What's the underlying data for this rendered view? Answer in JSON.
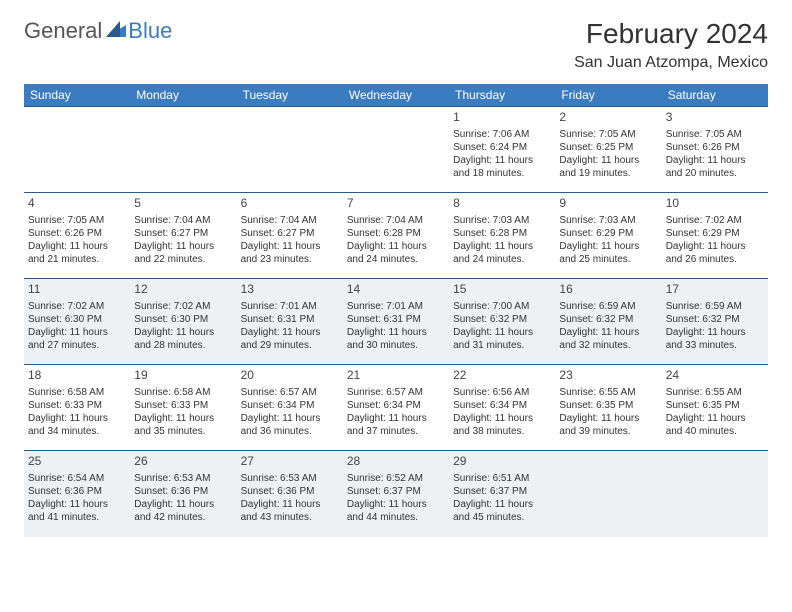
{
  "logo": {
    "general": "General",
    "blue": "Blue"
  },
  "title": "February 2024",
  "location": "San Juan Atzompa, Mexico",
  "colors": {
    "header_bg": "#3b7bbf",
    "header_border": "#2a5a8a",
    "shaded_row_bg": "#eef1f3",
    "text": "#333333",
    "logo_gray": "#555555",
    "logo_blue": "#3b7bbf"
  },
  "typography": {
    "title_fontsize": 28,
    "location_fontsize": 16,
    "dayheader_fontsize": 12,
    "cell_fontsize": 10,
    "daynum_fontsize": 12
  },
  "day_headers": [
    "Sunday",
    "Monday",
    "Tuesday",
    "Wednesday",
    "Thursday",
    "Friday",
    "Saturday"
  ],
  "weeks": [
    {
      "shaded": false,
      "days": [
        null,
        null,
        null,
        null,
        {
          "n": "1",
          "sunrise": "7:06 AM",
          "sunset": "6:24 PM",
          "daylight": "11 hours and 18 minutes."
        },
        {
          "n": "2",
          "sunrise": "7:05 AM",
          "sunset": "6:25 PM",
          "daylight": "11 hours and 19 minutes."
        },
        {
          "n": "3",
          "sunrise": "7:05 AM",
          "sunset": "6:26 PM",
          "daylight": "11 hours and 20 minutes."
        }
      ]
    },
    {
      "shaded": false,
      "days": [
        {
          "n": "4",
          "sunrise": "7:05 AM",
          "sunset": "6:26 PM",
          "daylight": "11 hours and 21 minutes."
        },
        {
          "n": "5",
          "sunrise": "7:04 AM",
          "sunset": "6:27 PM",
          "daylight": "11 hours and 22 minutes."
        },
        {
          "n": "6",
          "sunrise": "7:04 AM",
          "sunset": "6:27 PM",
          "daylight": "11 hours and 23 minutes."
        },
        {
          "n": "7",
          "sunrise": "7:04 AM",
          "sunset": "6:28 PM",
          "daylight": "11 hours and 24 minutes."
        },
        {
          "n": "8",
          "sunrise": "7:03 AM",
          "sunset": "6:28 PM",
          "daylight": "11 hours and 24 minutes."
        },
        {
          "n": "9",
          "sunrise": "7:03 AM",
          "sunset": "6:29 PM",
          "daylight": "11 hours and 25 minutes."
        },
        {
          "n": "10",
          "sunrise": "7:02 AM",
          "sunset": "6:29 PM",
          "daylight": "11 hours and 26 minutes."
        }
      ]
    },
    {
      "shaded": true,
      "days": [
        {
          "n": "11",
          "sunrise": "7:02 AM",
          "sunset": "6:30 PM",
          "daylight": "11 hours and 27 minutes."
        },
        {
          "n": "12",
          "sunrise": "7:02 AM",
          "sunset": "6:30 PM",
          "daylight": "11 hours and 28 minutes."
        },
        {
          "n": "13",
          "sunrise": "7:01 AM",
          "sunset": "6:31 PM",
          "daylight": "11 hours and 29 minutes."
        },
        {
          "n": "14",
          "sunrise": "7:01 AM",
          "sunset": "6:31 PM",
          "daylight": "11 hours and 30 minutes."
        },
        {
          "n": "15",
          "sunrise": "7:00 AM",
          "sunset": "6:32 PM",
          "daylight": "11 hours and 31 minutes."
        },
        {
          "n": "16",
          "sunrise": "6:59 AM",
          "sunset": "6:32 PM",
          "daylight": "11 hours and 32 minutes."
        },
        {
          "n": "17",
          "sunrise": "6:59 AM",
          "sunset": "6:32 PM",
          "daylight": "11 hours and 33 minutes."
        }
      ]
    },
    {
      "shaded": false,
      "days": [
        {
          "n": "18",
          "sunrise": "6:58 AM",
          "sunset": "6:33 PM",
          "daylight": "11 hours and 34 minutes."
        },
        {
          "n": "19",
          "sunrise": "6:58 AM",
          "sunset": "6:33 PM",
          "daylight": "11 hours and 35 minutes."
        },
        {
          "n": "20",
          "sunrise": "6:57 AM",
          "sunset": "6:34 PM",
          "daylight": "11 hours and 36 minutes."
        },
        {
          "n": "21",
          "sunrise": "6:57 AM",
          "sunset": "6:34 PM",
          "daylight": "11 hours and 37 minutes."
        },
        {
          "n": "22",
          "sunrise": "6:56 AM",
          "sunset": "6:34 PM",
          "daylight": "11 hours and 38 minutes."
        },
        {
          "n": "23",
          "sunrise": "6:55 AM",
          "sunset": "6:35 PM",
          "daylight": "11 hours and 39 minutes."
        },
        {
          "n": "24",
          "sunrise": "6:55 AM",
          "sunset": "6:35 PM",
          "daylight": "11 hours and 40 minutes."
        }
      ]
    },
    {
      "shaded": true,
      "days": [
        {
          "n": "25",
          "sunrise": "6:54 AM",
          "sunset": "6:36 PM",
          "daylight": "11 hours and 41 minutes."
        },
        {
          "n": "26",
          "sunrise": "6:53 AM",
          "sunset": "6:36 PM",
          "daylight": "11 hours and 42 minutes."
        },
        {
          "n": "27",
          "sunrise": "6:53 AM",
          "sunset": "6:36 PM",
          "daylight": "11 hours and 43 minutes."
        },
        {
          "n": "28",
          "sunrise": "6:52 AM",
          "sunset": "6:37 PM",
          "daylight": "11 hours and 44 minutes."
        },
        {
          "n": "29",
          "sunrise": "6:51 AM",
          "sunset": "6:37 PM",
          "daylight": "11 hours and 45 minutes."
        },
        null,
        null
      ]
    }
  ],
  "labels": {
    "sunrise": "Sunrise:",
    "sunset": "Sunset:",
    "daylight": "Daylight:"
  }
}
